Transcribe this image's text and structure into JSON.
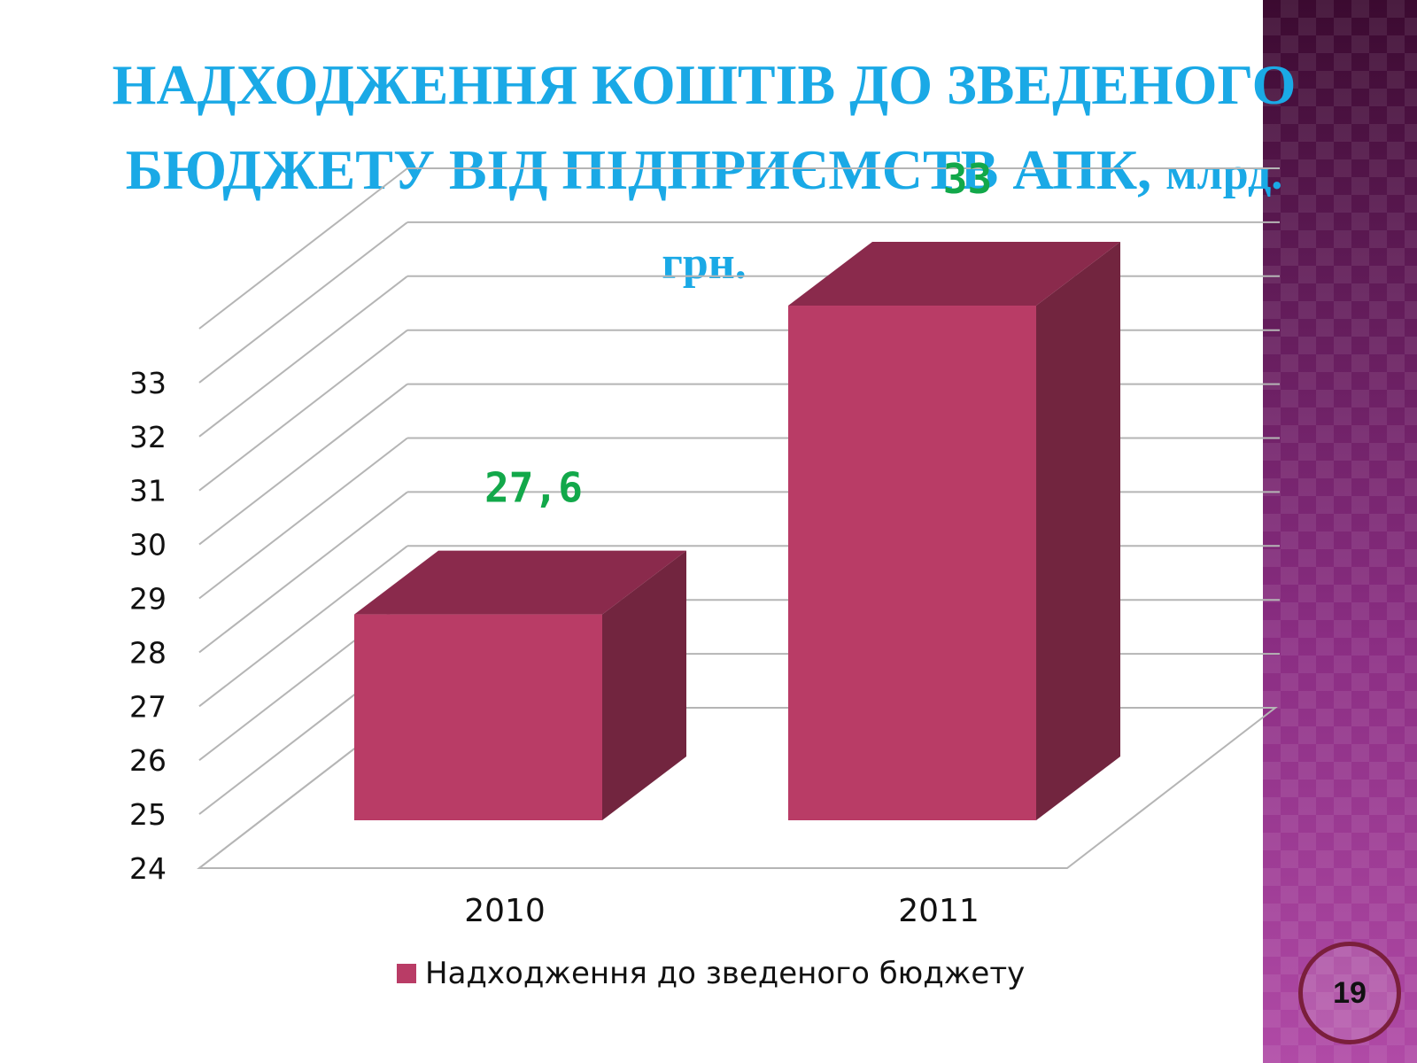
{
  "slide": {
    "title_line1": "НАДХОДЖЕННЯ КОШТІВ ДО ЗВЕДЕНОГО",
    "title_line2": "БЮДЖЕТУ ВІД ПІДПРИЄМСТВ АПК,",
    "title_unit": "млрд. грн.",
    "page_number": "19"
  },
  "colors": {
    "title": "#1aa9e6",
    "bar_front": "#b93c66",
    "bar_top": "#8a2a4c",
    "bar_side": "#72253f",
    "data_label": "#12a84a",
    "sidebar": "#8a2d82"
  },
  "chart_data": {
    "type": "bar",
    "style": "3d-column",
    "categories": [
      "2010",
      "2011"
    ],
    "series": [
      {
        "name": "Надходження до зведеного бюджету",
        "values": [
          27.6,
          33
        ],
        "labels": [
          "27,6",
          "33"
        ]
      }
    ],
    "y_ticks": [
      "24",
      "25",
      "26",
      "27",
      "28",
      "29",
      "30",
      "31",
      "32",
      "33"
    ],
    "ylim": [
      24,
      33
    ],
    "grid": true,
    "legend": "bottom"
  }
}
